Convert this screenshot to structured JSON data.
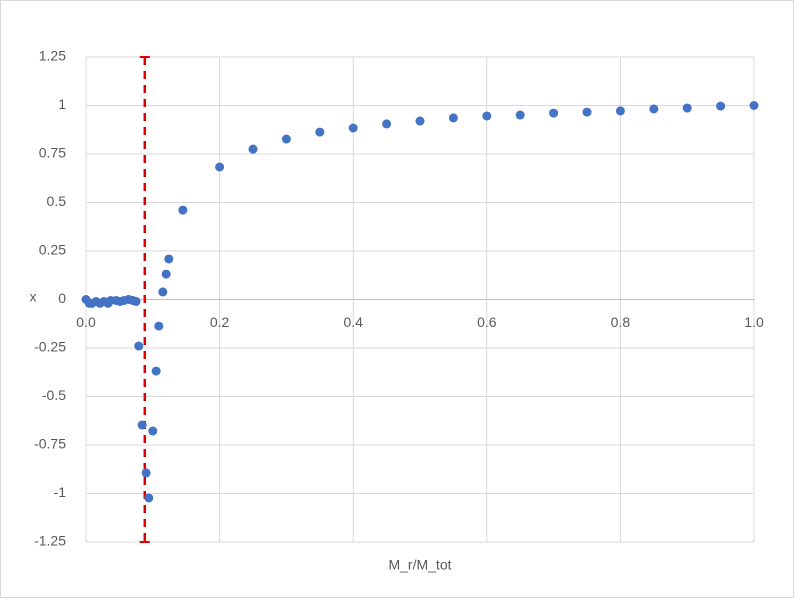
{
  "chart_data": {
    "type": "scatter",
    "x_label": "M_r/M_tot",
    "y_label": "x",
    "color": "#4472c4",
    "grid": true,
    "xlim": [
      0,
      1
    ],
    "ylim": [
      -1.25,
      1.25
    ],
    "xticks": [
      {
        "value": 0,
        "label": "0.0"
      },
      0.2,
      0.4,
      0.6,
      0.8,
      {
        "value": 1,
        "label": "1.0"
      }
    ],
    "yticks": [
      1.25,
      1,
      0.75,
      0.5,
      0.25,
      0,
      -0.25,
      -0.5,
      -0.75,
      -1,
      -1.25
    ],
    "vline": {
      "x": 0.088,
      "color": "#e00000"
    },
    "x": [
      0,
      0.005,
      0.009,
      0.015,
      0.021,
      0.027,
      0.033,
      0.037,
      0.045,
      0.051,
      0.057,
      0.064,
      0.07,
      0.075,
      0.079,
      0.084,
      0.09,
      0.094,
      0.1,
      0.105,
      0.109,
      0.115,
      0.12,
      0.124,
      0.145,
      0.2,
      0.25,
      0.3,
      0.35,
      0.4,
      0.45,
      0.5,
      0.55,
      0.6,
      0.65,
      0.7,
      0.75,
      0.8,
      0.85,
      0.9,
      0.95,
      1
    ],
    "y": [
      0,
      -0.02,
      -0.02,
      -0.01,
      -0.02,
      -0.01,
      -0.02,
      -0.005,
      -0.005,
      -0.01,
      -0.005,
      0,
      -0.005,
      -0.01,
      -0.24,
      -0.647,
      -0.894,
      -1.023,
      -0.678,
      -0.369,
      -0.137,
      0.039,
      0.131,
      0.209,
      0.461,
      0.683,
      0.775,
      0.827,
      0.863,
      0.884,
      0.905,
      0.92,
      0.936,
      0.946,
      0.951,
      0.961,
      0.966,
      0.972,
      0.982,
      0.987,
      0.997,
      1
    ]
  }
}
